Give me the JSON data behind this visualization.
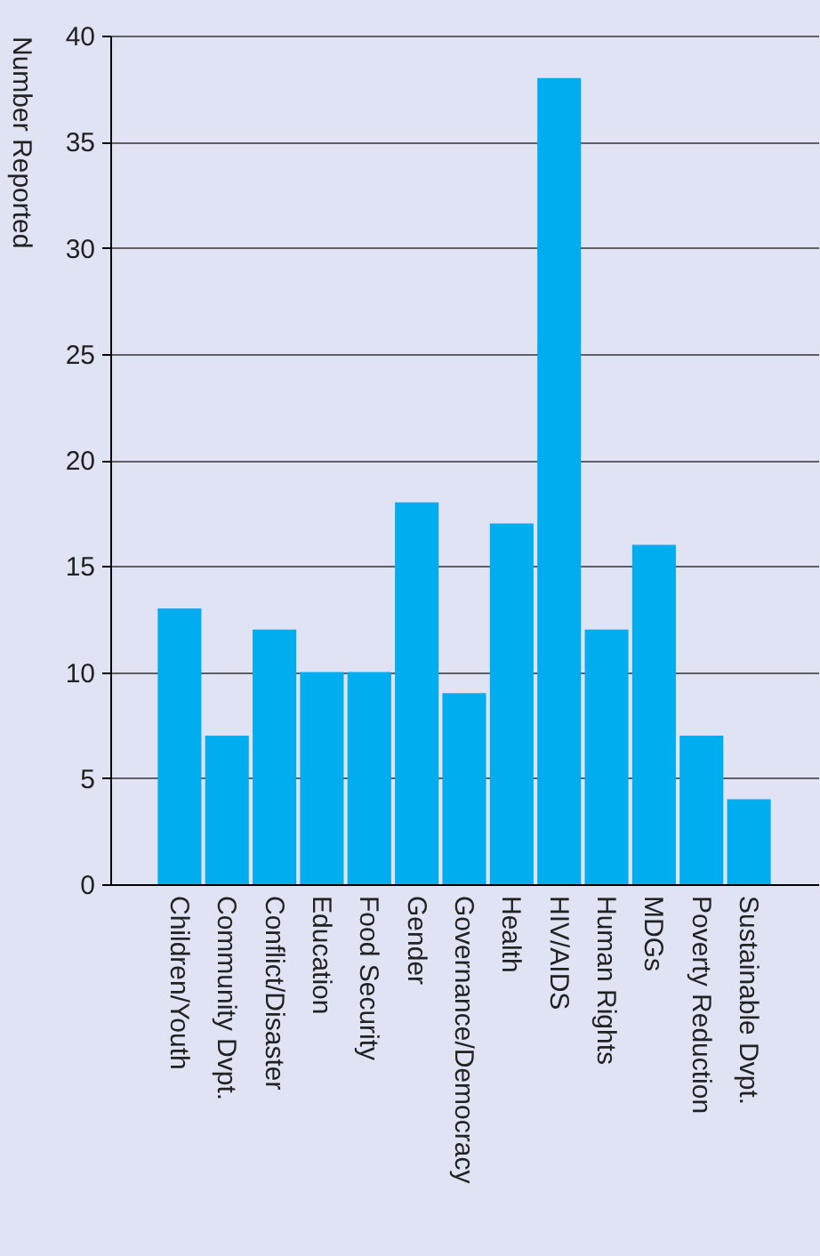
{
  "chart_data": {
    "type": "bar",
    "ylabel": "Number Reported",
    "categories": [
      "Children/Youth",
      "Community Dvpt.",
      "Conflict/Disaster",
      "Education",
      "Food Security",
      "Gender",
      "Governance/Democracy",
      "Health",
      "HIV/AIDS",
      "Human Rights",
      "MDGs",
      "Poverty Reduction",
      "Sustainable Dvpt."
    ],
    "values": [
      13,
      7,
      12,
      10,
      10,
      18,
      9,
      17,
      38,
      12,
      16,
      7,
      4
    ],
    "color": "#00aeef",
    "ylim": [
      0,
      40
    ],
    "yticks": [
      0,
      5,
      10,
      15,
      20,
      25,
      30,
      35,
      40
    ],
    "grid": "y"
  }
}
